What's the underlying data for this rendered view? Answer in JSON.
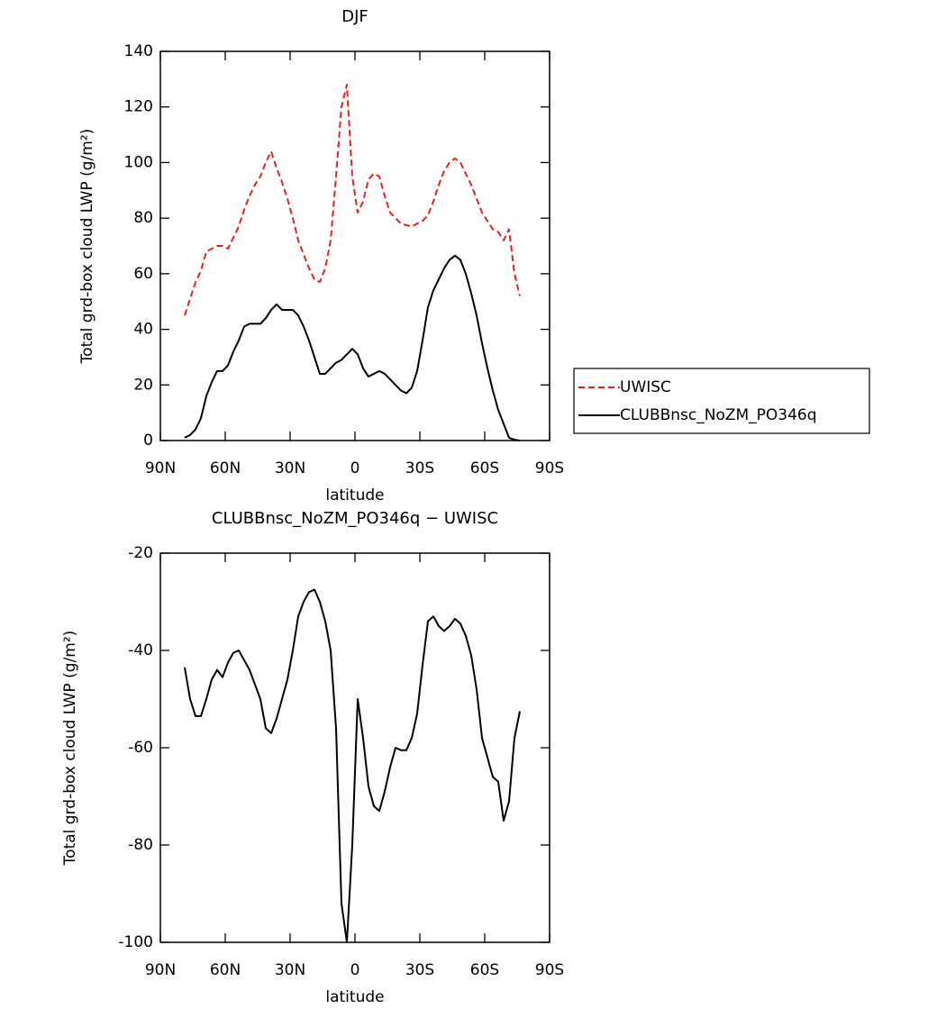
{
  "chart_data": [
    {
      "type": "line",
      "title": "DJF",
      "x_label": "latitude",
      "y_label": "Total grd-box cloud LWP (g/m²)",
      "x": [
        78.75,
        76.25,
        73.75,
        71.25,
        68.75,
        66.25,
        63.75,
        61.25,
        58.75,
        56.25,
        53.75,
        51.25,
        48.75,
        46.25,
        43.75,
        41.25,
        38.75,
        36.25,
        33.75,
        31.25,
        28.75,
        26.25,
        23.75,
        21.25,
        18.75,
        16.25,
        13.75,
        11.25,
        8.75,
        6.25,
        3.75,
        1.25,
        -1.25,
        -3.75,
        -6.25,
        -8.75,
        -11.25,
        -13.75,
        -16.25,
        -18.75,
        -21.25,
        -23.75,
        -26.25,
        -28.75,
        -31.25,
        -33.75,
        -36.25,
        -38.75,
        -41.25,
        -43.75,
        -46.25,
        -48.75,
        -51.25,
        -53.75,
        -56.25,
        -58.75,
        -61.25,
        -63.75,
        -66.25,
        -68.75,
        -71.25,
        -73.75,
        -76.25
      ],
      "series": [
        {
          "name": "UWISC",
          "color": "#e8201a",
          "line_style": "dashed",
          "values": [
            45,
            51,
            57,
            61,
            68,
            69,
            70,
            70,
            69,
            73,
            77,
            83,
            88,
            92,
            95,
            100,
            104,
            98,
            93,
            87,
            80,
            72,
            67,
            62,
            58,
            57,
            62,
            72,
            95,
            120,
            128,
            95,
            82,
            86,
            94,
            96,
            95,
            88,
            82,
            80,
            78,
            77.5,
            77,
            78,
            79,
            81,
            86,
            92,
            97,
            100,
            101.5,
            100,
            96,
            92,
            87,
            82,
            79,
            76,
            75,
            72,
            76,
            60,
            52
          ]
        },
        {
          "name": "CLUBBnsc_NoZM_PO346q",
          "color": "#000000",
          "line_style": "solid",
          "values": [
            1,
            2,
            4,
            8,
            16,
            21,
            25,
            25,
            27,
            32,
            36,
            41,
            42,
            42,
            42,
            44,
            47,
            49,
            47,
            47,
            47,
            45,
            41,
            36,
            30,
            24,
            24,
            26,
            28,
            29,
            31,
            33,
            31,
            26,
            23,
            24,
            25,
            24,
            22,
            20,
            18,
            17,
            19,
            25,
            36,
            48,
            54,
            58,
            62,
            65,
            66.5,
            65,
            60,
            53,
            45,
            35,
            26,
            18,
            11,
            6,
            1,
            0.3,
            0
          ]
        }
      ],
      "xlim": [
        90,
        -90
      ],
      "xticks": [
        {
          "value": 90,
          "label": "90N"
        },
        {
          "value": 60,
          "label": "60N"
        },
        {
          "value": 30,
          "label": "30N"
        },
        0,
        {
          "value": -30,
          "label": "30S"
        },
        {
          "value": -60,
          "label": "60S"
        },
        {
          "value": -90,
          "label": "90S"
        }
      ],
      "ylim": [
        0,
        140
      ],
      "yticks": [
        0,
        20,
        40,
        60,
        80,
        100,
        120,
        140
      ],
      "legend": "outside-right"
    },
    {
      "type": "line",
      "title": "CLUBBnsc_NoZM_PO346q − UWISC",
      "x_label": "latitude",
      "y_label": "Total grd-box cloud LWP (g/m²)",
      "x": [
        78.75,
        76.25,
        73.75,
        71.25,
        68.75,
        66.25,
        63.75,
        61.25,
        58.75,
        56.25,
        53.75,
        51.25,
        48.75,
        46.25,
        43.75,
        41.25,
        38.75,
        36.25,
        33.75,
        31.25,
        28.75,
        26.25,
        23.75,
        21.25,
        18.75,
        16.25,
        13.75,
        11.25,
        8.75,
        6.25,
        3.75,
        1.25,
        -1.25,
        -3.75,
        -6.25,
        -8.75,
        -11.25,
        -13.75,
        -16.25,
        -18.75,
        -21.25,
        -23.75,
        -26.25,
        -28.75,
        -31.25,
        -33.75,
        -36.25,
        -38.75,
        -41.25,
        -43.75,
        -46.25,
        -48.75,
        -51.25,
        -53.75,
        -56.25,
        -58.75,
        -61.25,
        -63.75,
        -66.25,
        -68.75,
        -71.25,
        -73.75,
        -76.25
      ],
      "series": [
        {
          "color": "#000000",
          "line_style": "solid",
          "values": [
            -43.5,
            -50,
            -53.5,
            -53.5,
            -50,
            -46,
            -44,
            -45.5,
            -42.5,
            -40.5,
            -40,
            -42,
            -44,
            -47,
            -50,
            -56,
            -57,
            -54,
            -50,
            -46,
            -40,
            -33,
            -30,
            -28,
            -27.5,
            -30,
            -34,
            -40,
            -56,
            -92,
            -100,
            -80,
            -50,
            -58,
            -68,
            -72,
            -73,
            -69,
            -64,
            -60,
            -60.5,
            -60.5,
            -58,
            -53,
            -43,
            -34,
            -33,
            -35,
            -36,
            -35,
            -33.5,
            -34.5,
            -37,
            -41,
            -48,
            -58,
            -62,
            -66,
            -67,
            -75,
            -71,
            -58,
            -52.5
          ]
        }
      ],
      "xlim": [
        90,
        -90
      ],
      "xticks": [
        {
          "value": 90,
          "label": "90N"
        },
        {
          "value": 60,
          "label": "60N"
        },
        {
          "value": 30,
          "label": "30N"
        },
        0,
        {
          "value": -30,
          "label": "30S"
        },
        {
          "value": -60,
          "label": "60S"
        },
        {
          "value": -90,
          "label": "90S"
        }
      ],
      "ylim": [
        -100,
        -20
      ],
      "yticks": [
        -100,
        -80,
        -60,
        -40,
        -20
      ]
    }
  ]
}
